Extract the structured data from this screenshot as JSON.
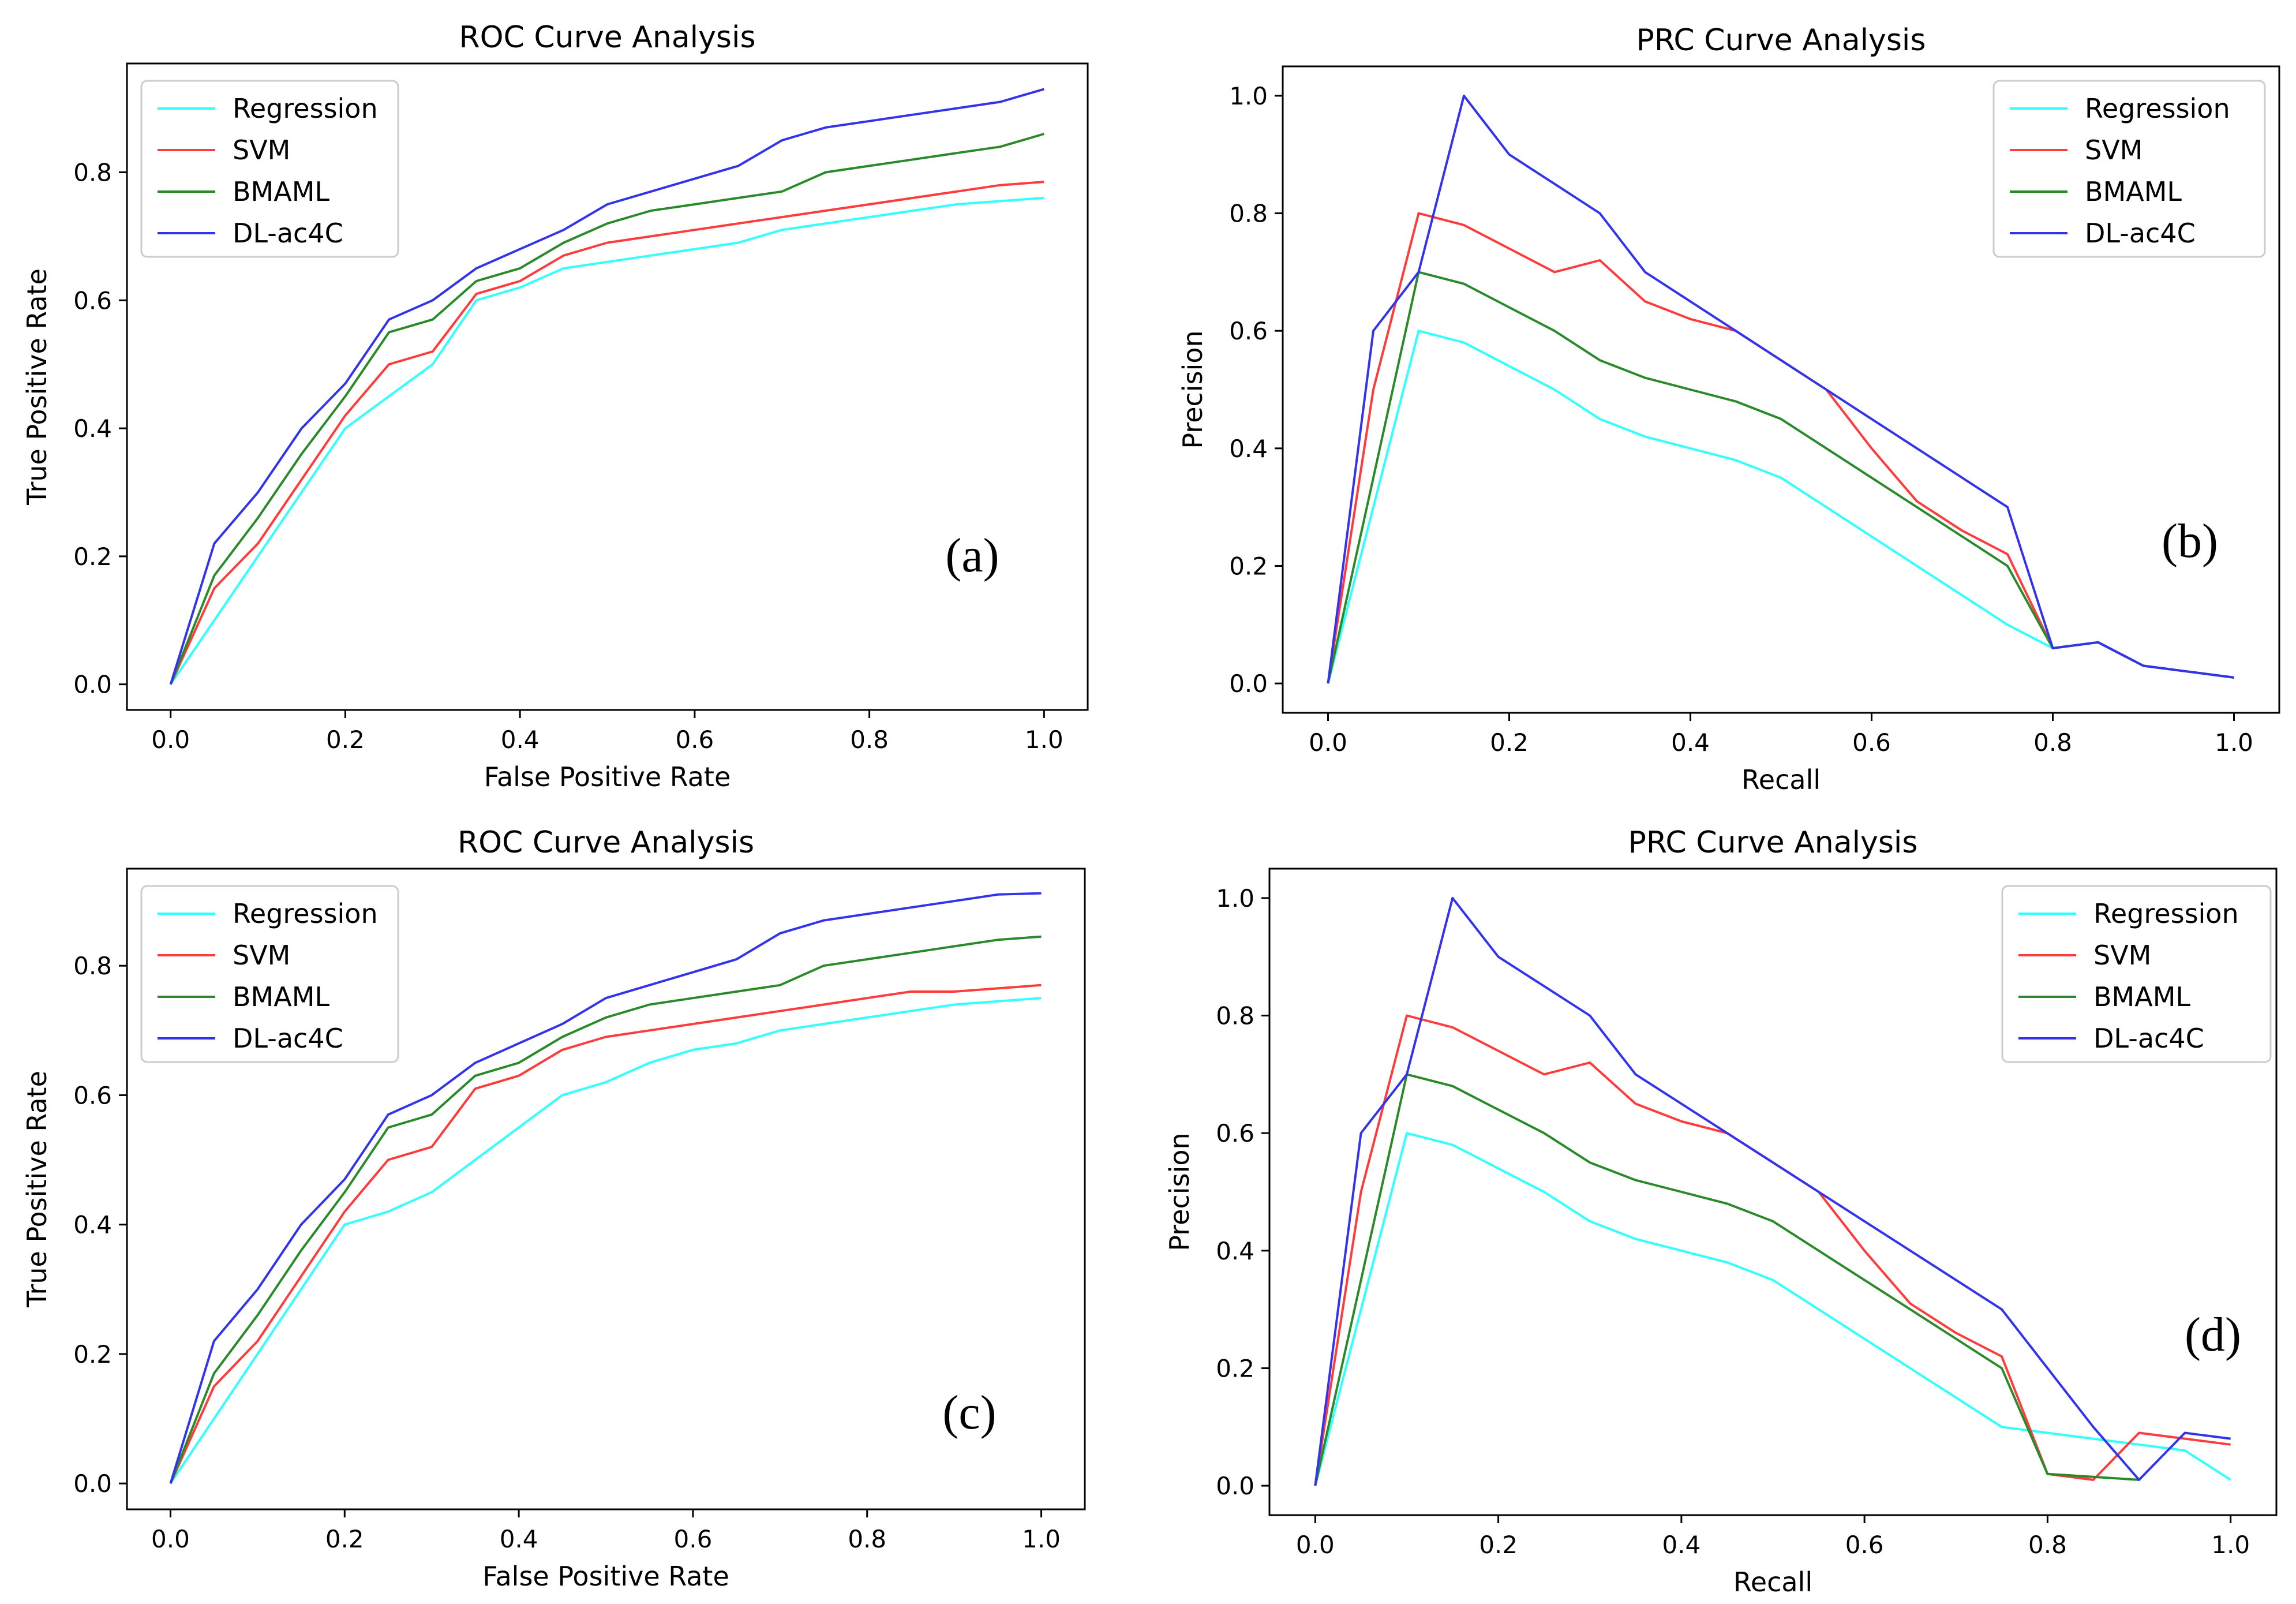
{
  "colors": {
    "Regression": "#33ffff",
    "SVM": "#ff3b3b",
    "BMAML": "#2a8a2a",
    "DL-ac4C": "#3333ee"
  },
  "chart_data": [
    {
      "type": "line",
      "title": "ROC Curve Analysis",
      "xlabel": "False Positive Rate",
      "ylabel": "True Positive Rate",
      "panel_label": "(a)",
      "xlim": [
        -0.05,
        1.05
      ],
      "ylim": [
        -0.04,
        0.97
      ],
      "xticks": [
        "0.0",
        "0.2",
        "0.4",
        "0.6",
        "0.8",
        "1.0"
      ],
      "yticks": [
        "0.0",
        "0.2",
        "0.4",
        "0.6",
        "0.8"
      ],
      "legend_position": "upper-left",
      "x": [
        0,
        0.05,
        0.1,
        0.15,
        0.2,
        0.25,
        0.3,
        0.35,
        0.4,
        0.45,
        0.5,
        0.55,
        0.6,
        0.65,
        0.7,
        0.75,
        0.8,
        0.85,
        0.9,
        0.95,
        1.0
      ],
      "series": [
        {
          "name": "Regression",
          "values": [
            0,
            0.1,
            0.2,
            0.3,
            0.4,
            0.45,
            0.5,
            0.6,
            0.62,
            0.65,
            0.66,
            0.67,
            0.68,
            0.69,
            0.71,
            0.72,
            0.73,
            0.74,
            0.75,
            0.755,
            0.76
          ]
        },
        {
          "name": "SVM",
          "values": [
            0,
            0.15,
            0.22,
            0.32,
            0.42,
            0.5,
            0.52,
            0.61,
            0.63,
            0.67,
            0.69,
            0.7,
            0.71,
            0.72,
            0.73,
            0.74,
            0.75,
            0.76,
            0.77,
            0.78,
            0.785
          ]
        },
        {
          "name": "BMAML",
          "values": [
            0,
            0.17,
            0.26,
            0.36,
            0.45,
            0.55,
            0.57,
            0.63,
            0.65,
            0.69,
            0.72,
            0.74,
            0.75,
            0.76,
            0.77,
            0.8,
            0.81,
            0.82,
            0.83,
            0.84,
            0.86
          ]
        },
        {
          "name": "DL-ac4C",
          "values": [
            0,
            0.22,
            0.3,
            0.4,
            0.47,
            0.57,
            0.6,
            0.65,
            0.68,
            0.71,
            0.75,
            0.77,
            0.79,
            0.81,
            0.85,
            0.87,
            0.88,
            0.89,
            0.9,
            0.91,
            0.93
          ]
        }
      ]
    },
    {
      "type": "line",
      "title": "PRC Curve Analysis",
      "xlabel": "Recall",
      "ylabel": "Precision",
      "panel_label": "(b)",
      "xlim": [
        -0.05,
        1.05
      ],
      "ylim": [
        -0.05,
        1.05
      ],
      "xticks": [
        "0.0",
        "0.2",
        "0.4",
        "0.6",
        "0.8",
        "1.0"
      ],
      "yticks": [
        "0.0",
        "0.2",
        "0.4",
        "0.6",
        "0.8",
        "1.0"
      ],
      "legend_position": "upper-right",
      "series": [
        {
          "name": "Regression",
          "x": [
            0,
            0.1,
            0.15,
            0.2,
            0.25,
            0.3,
            0.35,
            0.4,
            0.45,
            0.5,
            0.55,
            0.6,
            0.65,
            0.7,
            0.75,
            0.8,
            0.85,
            0.9,
            0.95,
            1.0
          ],
          "values": [
            0,
            0.6,
            0.58,
            0.54,
            0.5,
            0.45,
            0.42,
            0.4,
            0.38,
            0.35,
            0.3,
            0.25,
            0.2,
            0.15,
            0.1,
            0.06,
            0.07,
            0.03,
            0.02,
            0.01
          ]
        },
        {
          "name": "SVM",
          "x": [
            0,
            0.05,
            0.1,
            0.15,
            0.2,
            0.25,
            0.3,
            0.35,
            0.4,
            0.45,
            0.5,
            0.55,
            0.6,
            0.65,
            0.7,
            0.75,
            0.8,
            0.85,
            0.9,
            0.95,
            1.0
          ],
          "values": [
            0,
            0.5,
            0.8,
            0.78,
            0.74,
            0.7,
            0.72,
            0.65,
            0.62,
            0.6,
            0.55,
            0.5,
            0.4,
            0.31,
            0.26,
            0.22,
            0.06,
            0.07,
            0.03,
            0.02,
            0.01
          ]
        },
        {
          "name": "BMAML",
          "x": [
            0,
            0.1,
            0.15,
            0.2,
            0.25,
            0.3,
            0.35,
            0.4,
            0.45,
            0.5,
            0.55,
            0.6,
            0.65,
            0.7,
            0.75,
            0.8,
            0.85,
            0.9,
            0.95,
            1.0
          ],
          "values": [
            0,
            0.7,
            0.68,
            0.64,
            0.6,
            0.55,
            0.52,
            0.5,
            0.48,
            0.45,
            0.4,
            0.35,
            0.3,
            0.25,
            0.2,
            0.06,
            0.07,
            0.03,
            0.02,
            0.01
          ]
        },
        {
          "name": "DL-ac4C",
          "x": [
            0,
            0.05,
            0.1,
            0.15,
            0.2,
            0.25,
            0.3,
            0.35,
            0.4,
            0.45,
            0.5,
            0.55,
            0.6,
            0.65,
            0.7,
            0.75,
            0.8,
            0.85,
            0.9,
            0.95,
            1.0
          ],
          "values": [
            0,
            0.6,
            0.7,
            1.0,
            0.9,
            0.85,
            0.8,
            0.7,
            0.65,
            0.6,
            0.55,
            0.5,
            0.45,
            0.4,
            0.35,
            0.3,
            0.06,
            0.07,
            0.03,
            0.02,
            0.01
          ]
        }
      ]
    },
    {
      "type": "line",
      "title": "ROC Curve Analysis",
      "xlabel": "False Positive Rate",
      "ylabel": "True Positive Rate",
      "panel_label": "(c)",
      "xlim": [
        -0.05,
        1.05
      ],
      "ylim": [
        -0.04,
        0.95
      ],
      "xticks": [
        "0.0",
        "0.2",
        "0.4",
        "0.6",
        "0.8",
        "1.0"
      ],
      "yticks": [
        "0.0",
        "0.2",
        "0.4",
        "0.6",
        "0.8"
      ],
      "legend_position": "upper-left",
      "x": [
        0,
        0.05,
        0.1,
        0.15,
        0.2,
        0.25,
        0.3,
        0.35,
        0.4,
        0.45,
        0.5,
        0.55,
        0.6,
        0.65,
        0.7,
        0.75,
        0.8,
        0.85,
        0.9,
        0.95,
        1.0
      ],
      "series": [
        {
          "name": "Regression",
          "values": [
            0,
            0.1,
            0.2,
            0.3,
            0.4,
            0.42,
            0.45,
            0.5,
            0.55,
            0.6,
            0.62,
            0.65,
            0.67,
            0.68,
            0.7,
            0.71,
            0.72,
            0.73,
            0.74,
            0.745,
            0.75
          ]
        },
        {
          "name": "SVM",
          "values": [
            0,
            0.15,
            0.22,
            0.32,
            0.42,
            0.5,
            0.52,
            0.61,
            0.63,
            0.67,
            0.69,
            0.7,
            0.71,
            0.72,
            0.73,
            0.74,
            0.75,
            0.76,
            0.76,
            0.765,
            0.77
          ]
        },
        {
          "name": "BMAML",
          "values": [
            0,
            0.17,
            0.26,
            0.36,
            0.45,
            0.55,
            0.57,
            0.63,
            0.65,
            0.69,
            0.72,
            0.74,
            0.75,
            0.76,
            0.77,
            0.8,
            0.81,
            0.82,
            0.83,
            0.84,
            0.845
          ]
        },
        {
          "name": "DL-ac4C",
          "values": [
            0,
            0.22,
            0.3,
            0.4,
            0.47,
            0.57,
            0.6,
            0.65,
            0.68,
            0.71,
            0.75,
            0.77,
            0.79,
            0.81,
            0.85,
            0.87,
            0.88,
            0.89,
            0.9,
            0.91,
            0.912
          ]
        }
      ]
    },
    {
      "type": "line",
      "title": "PRC Curve Analysis",
      "xlabel": "Recall",
      "ylabel": "Precision",
      "panel_label": "(d)",
      "xlim": [
        -0.05,
        1.05
      ],
      "ylim": [
        -0.05,
        1.05
      ],
      "xticks": [
        "0.0",
        "0.2",
        "0.4",
        "0.6",
        "0.8",
        "1.0"
      ],
      "yticks": [
        "0.0",
        "0.2",
        "0.4",
        "0.6",
        "0.8",
        "1.0"
      ],
      "legend_position": "upper-right",
      "series": [
        {
          "name": "Regression",
          "x": [
            0,
            0.1,
            0.15,
            0.2,
            0.25,
            0.3,
            0.35,
            0.4,
            0.45,
            0.5,
            0.55,
            0.6,
            0.65,
            0.7,
            0.75,
            0.8,
            0.85,
            0.9,
            0.95,
            1.0
          ],
          "values": [
            0,
            0.6,
            0.58,
            0.54,
            0.5,
            0.45,
            0.42,
            0.4,
            0.38,
            0.35,
            0.3,
            0.25,
            0.2,
            0.15,
            0.1,
            0.09,
            0.08,
            0.07,
            0.06,
            0.01
          ]
        },
        {
          "name": "SVM",
          "x": [
            0,
            0.05,
            0.1,
            0.15,
            0.2,
            0.25,
            0.3,
            0.35,
            0.4,
            0.45,
            0.5,
            0.55,
            0.6,
            0.65,
            0.7,
            0.75,
            0.8,
            0.85,
            0.9,
            0.95,
            1.0
          ],
          "values": [
            0,
            0.5,
            0.8,
            0.78,
            0.74,
            0.7,
            0.72,
            0.65,
            0.62,
            0.6,
            0.55,
            0.5,
            0.4,
            0.31,
            0.26,
            0.22,
            0.02,
            0.01,
            0.09,
            0.08,
            0.07
          ]
        },
        {
          "name": "BMAML",
          "x": [
            0,
            0.1,
            0.15,
            0.2,
            0.25,
            0.3,
            0.35,
            0.4,
            0.45,
            0.5,
            0.55,
            0.6,
            0.65,
            0.7,
            0.75,
            0.8,
            0.85,
            0.9
          ],
          "values": [
            0,
            0.7,
            0.68,
            0.64,
            0.6,
            0.55,
            0.52,
            0.5,
            0.48,
            0.45,
            0.4,
            0.35,
            0.3,
            0.25,
            0.2,
            0.02,
            0.015,
            0.01
          ]
        },
        {
          "name": "DL-ac4C",
          "x": [
            0,
            0.05,
            0.1,
            0.15,
            0.2,
            0.25,
            0.3,
            0.35,
            0.4,
            0.45,
            0.5,
            0.55,
            0.6,
            0.65,
            0.7,
            0.75,
            0.8,
            0.85,
            0.9,
            0.95,
            1.0
          ],
          "values": [
            0,
            0.6,
            0.7,
            1.0,
            0.9,
            0.85,
            0.8,
            0.7,
            0.65,
            0.6,
            0.55,
            0.5,
            0.45,
            0.4,
            0.35,
            0.3,
            0.2,
            0.1,
            0.01,
            0.09,
            0.08
          ]
        }
      ]
    }
  ]
}
